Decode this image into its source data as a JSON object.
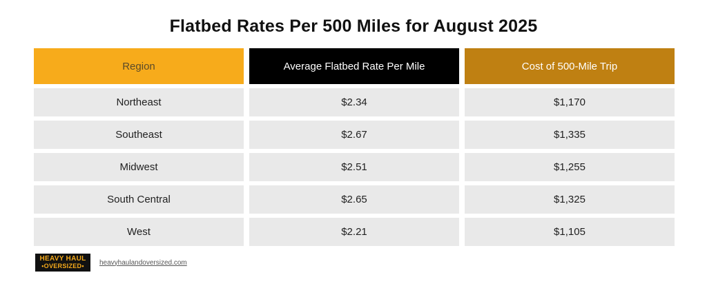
{
  "chart_data": {
    "type": "table",
    "title": "Flatbed Rates Per 500 Miles for August 2025",
    "columns": [
      "Region",
      "Average Flatbed Rate Per Mile",
      "Cost of 500-Mile Trip"
    ],
    "rows": [
      {
        "region": "Northeast",
        "rate": "$2.34",
        "cost": "$1,170"
      },
      {
        "region": "Southeast",
        "rate": "$2.67",
        "cost": "$1,335"
      },
      {
        "region": "Midwest",
        "rate": "$2.51",
        "cost": "$1,255"
      },
      {
        "region": "South Central",
        "rate": "$2.65",
        "cost": "$1,325"
      },
      {
        "region": "West",
        "rate": "$2.21",
        "cost": "$1,105"
      }
    ],
    "header_colors": [
      "#f7ab1b",
      "#000000",
      "#bf8012"
    ],
    "row_color": "#e9e9e9"
  },
  "footer": {
    "logo_line1": "HEAVY HAUL",
    "logo_line2": "•OVERSIZED•",
    "website": "heavyhaulandoversized.com"
  }
}
